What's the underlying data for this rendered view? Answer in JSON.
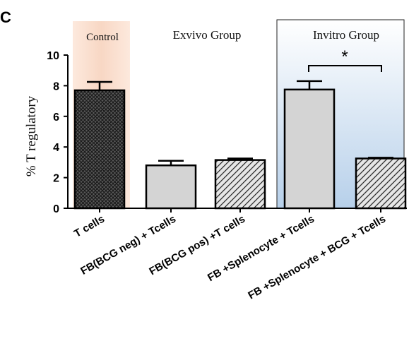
{
  "figure": {
    "panel_letter": "C"
  },
  "chart_data": {
    "type": "bar",
    "ylabel": "% T regulatory",
    "xlabel": "",
    "ylim": [
      0,
      10
    ],
    "yticks": [
      0,
      2,
      4,
      6,
      8,
      10
    ],
    "categories": [
      "T cells",
      "FB(BCG neg) + Tcells",
      "FB(BCG pos) +T cells",
      "FB +Splenocyte + Tcells",
      "FB +Splenocyte + BCG + Tcells"
    ],
    "values": [
      7.7,
      2.8,
      3.15,
      7.75,
      3.25
    ],
    "errors": [
      0.55,
      0.3,
      0.1,
      0.55,
      0.05
    ],
    "fills": [
      "dark-crosshatch",
      "light-gray",
      "diagonal-hatch",
      "light-gray",
      "diagonal-hatch"
    ],
    "groups": [
      {
        "label": "Control",
        "categories": [
          0
        ],
        "background": "#fbe3d6"
      },
      {
        "label": "Exvivo Group",
        "categories": [
          1,
          2
        ],
        "background": "#ffffff"
      },
      {
        "label": "Invitro Group",
        "categories": [
          3,
          4
        ],
        "background": "#c9dcef"
      }
    ],
    "annotations": [
      {
        "text": "*",
        "between": [
          3,
          4
        ]
      }
    ],
    "colors": {
      "light_bar": "#d4d4d4",
      "dark_bar": "#3d3d3d",
      "outline": "#000000",
      "control_bg": "#fbe3d6",
      "invitro_bg": "#c9dcef"
    }
  }
}
